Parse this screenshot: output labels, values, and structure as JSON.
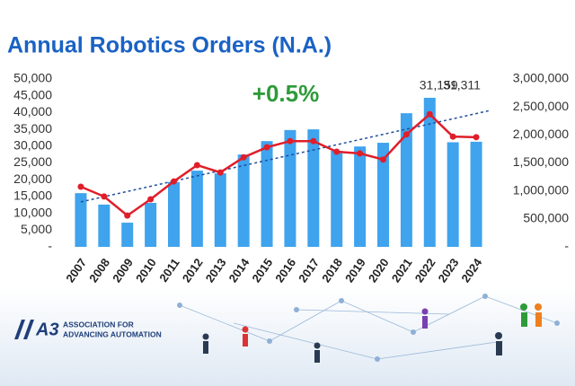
{
  "chart_data": {
    "type": "bar-line",
    "title": "Annual Robotics Orders (N.A.)",
    "annotation": "+0.5%",
    "categories": [
      "2007",
      "2008",
      "2009",
      "2010",
      "2011",
      "2012",
      "2013",
      "2014",
      "2015",
      "2016",
      "2017",
      "2018",
      "2019",
      "2020",
      "2021",
      "2022",
      "2023",
      "2024"
    ],
    "series": [
      {
        "type": "bar",
        "color": "#3fa3ee",
        "values": [
          16000,
          12600,
          7200,
          13100,
          19300,
          22700,
          21900,
          27500,
          31500,
          34800,
          35000,
          28600,
          29900,
          31000,
          39800,
          44400,
          31159,
          31311
        ],
        "value_labels": [
          null,
          null,
          null,
          null,
          null,
          null,
          null,
          null,
          null,
          null,
          null,
          null,
          null,
          null,
          null,
          null,
          "31,159",
          "31,311"
        ]
      },
      {
        "type": "line",
        "axis": "y2",
        "color": "#e01e2a",
        "values": [
          1075000,
          900000,
          560000,
          850000,
          1170000,
          1460000,
          1330000,
          1600000,
          1780000,
          1890000,
          1890000,
          1700000,
          1670000,
          1560000,
          2010000,
          2370000,
          1970000,
          1960000
        ]
      }
    ],
    "trend": {
      "color": "#1f4e9a",
      "values": [
        13400,
        40600
      ]
    },
    "ylim": [
      0,
      50000
    ],
    "yticks": [
      {
        "value": 0,
        "label": "-"
      },
      {
        "value": 5000,
        "label": "5,000"
      },
      {
        "value": 10000,
        "label": "10,000"
      },
      {
        "value": 15000,
        "label": "15,000"
      },
      {
        "value": 20000,
        "label": "20,000"
      },
      {
        "value": 25000,
        "label": "25,000"
      },
      {
        "value": 30000,
        "label": "30,000"
      },
      {
        "value": 35000,
        "label": "35,000"
      },
      {
        "value": 40000,
        "label": "40,000"
      },
      {
        "value": 45000,
        "label": "45,000"
      },
      {
        "value": 50000,
        "label": "50,000"
      }
    ],
    "y2lim": [
      0,
      3000000
    ],
    "y2ticks": [
      {
        "value": 0,
        "label": "-"
      },
      {
        "value": 500000,
        "label": "500,000"
      },
      {
        "value": 1000000,
        "label": "1,000,000"
      },
      {
        "value": 1500000,
        "label": "1,500,000"
      },
      {
        "value": 2000000,
        "label": "2,000,000"
      },
      {
        "value": 2500000,
        "label": "2,500,000"
      },
      {
        "value": 3000000,
        "label": "3,000,000"
      }
    ]
  },
  "logo": {
    "mark": "A3",
    "line1": "ASSOCIATION FOR",
    "line2": "ADVANCING AUTOMATION"
  }
}
